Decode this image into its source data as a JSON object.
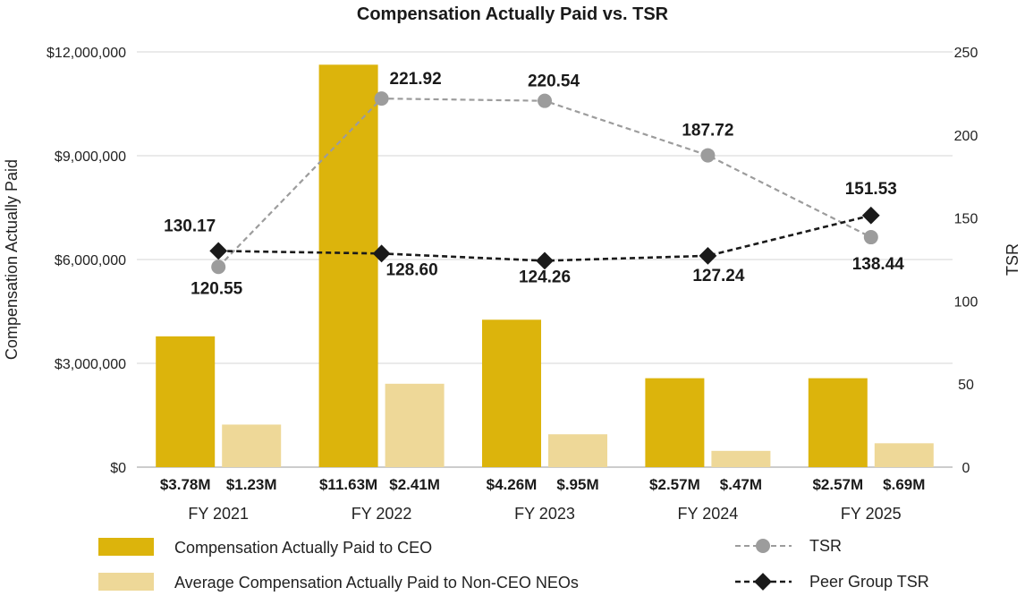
{
  "chart_data": {
    "type": "bar+line",
    "title": "Compensation Actually Paid vs. TSR",
    "ylabel": "Compensation Actually Paid",
    "y2label": "TSR",
    "ylim": [
      0,
      12000000
    ],
    "y2lim": [
      0,
      250
    ],
    "yticks": [
      "$0",
      "$3,000,000",
      "$6,000,000",
      "$9,000,000",
      "$12,000,000"
    ],
    "y2ticks": [
      "0",
      "50",
      "100",
      "150",
      "200",
      "250"
    ],
    "categories": [
      "FY 2021",
      "FY 2022",
      "FY 2023",
      "FY 2024",
      "FY 2025"
    ],
    "bar_series": [
      {
        "name": "Compensation Actually Paid to CEO",
        "color": "#dcb40c",
        "values": [
          3780000,
          11630000,
          4260000,
          2570000,
          2570000
        ],
        "labels": [
          "$3.78M",
          "$11.63M",
          "$4.26M",
          "$2.57M",
          "$2.57M"
        ]
      },
      {
        "name": "Average Compensation Actually Paid to Non-CEO NEOs",
        "color": "#eed898",
        "values": [
          1230000,
          2410000,
          950000,
          470000,
          690000
        ],
        "labels": [
          "$1.23M",
          "$2.41M",
          "$.95M",
          "$.47M",
          "$.69M"
        ]
      }
    ],
    "line_series": [
      {
        "name": "TSR",
        "color": "#9c9c9c",
        "marker": "circle",
        "values": [
          120.55,
          221.92,
          220.54,
          187.72,
          138.44
        ],
        "labels": [
          "120.55",
          "221.92",
          "220.54",
          "187.72",
          "138.44"
        ]
      },
      {
        "name": "Peer Group TSR",
        "color": "#1a1a1a",
        "marker": "diamond",
        "values": [
          130.17,
          128.6,
          124.26,
          127.24,
          151.53
        ],
        "labels": [
          "130.17",
          "128.60",
          "124.26",
          "127.24",
          "151.53"
        ]
      }
    ],
    "grid": true,
    "legend": "bottom"
  }
}
